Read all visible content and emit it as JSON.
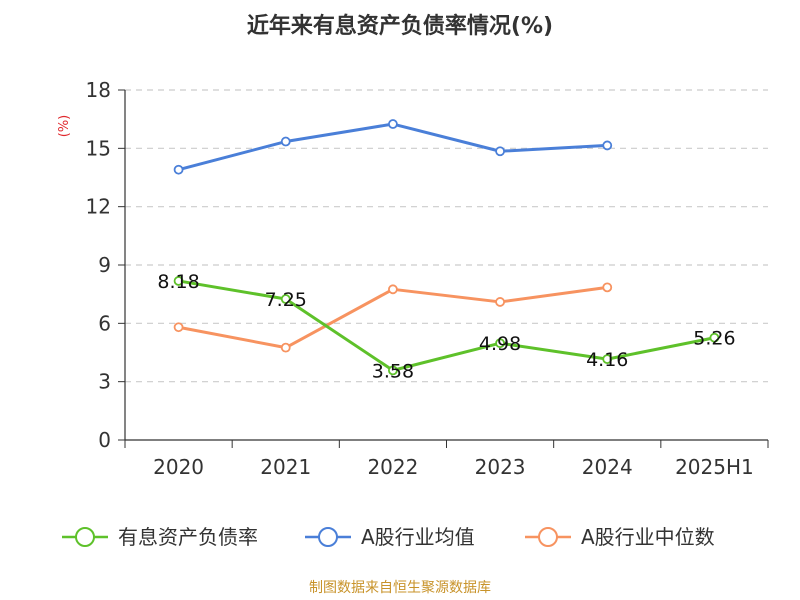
{
  "chart_data": {
    "type": "line",
    "title": "近年来有息资产负债率情况(%)",
    "ylabel": "(%)",
    "xlabel": "",
    "ylim": [
      0,
      18
    ],
    "yticks": [
      0,
      3,
      6,
      9,
      12,
      15,
      18
    ],
    "categories": [
      "2020",
      "2021",
      "2022",
      "2023",
      "2024",
      "2025H1"
    ],
    "grid": true,
    "legend_position": "bottom",
    "series": [
      {
        "name": "有息资产负债率",
        "color": "#5ec12a",
        "values": [
          8.18,
          7.25,
          3.58,
          4.98,
          4.16,
          5.26
        ],
        "labels": [
          "8.18",
          "7.25",
          "3.58",
          "4.98",
          "4.16",
          "5.26"
        ]
      },
      {
        "name": "A股行业均值",
        "color": "#4a7fd8",
        "values": [
          13.9,
          15.35,
          16.25,
          14.85,
          15.15,
          null
        ]
      },
      {
        "name": "A股行业中位数",
        "color": "#f79360",
        "values": [
          5.8,
          4.75,
          7.75,
          7.1,
          7.85,
          null
        ]
      }
    ]
  },
  "source": "制图数据来自恒生聚源数据库"
}
